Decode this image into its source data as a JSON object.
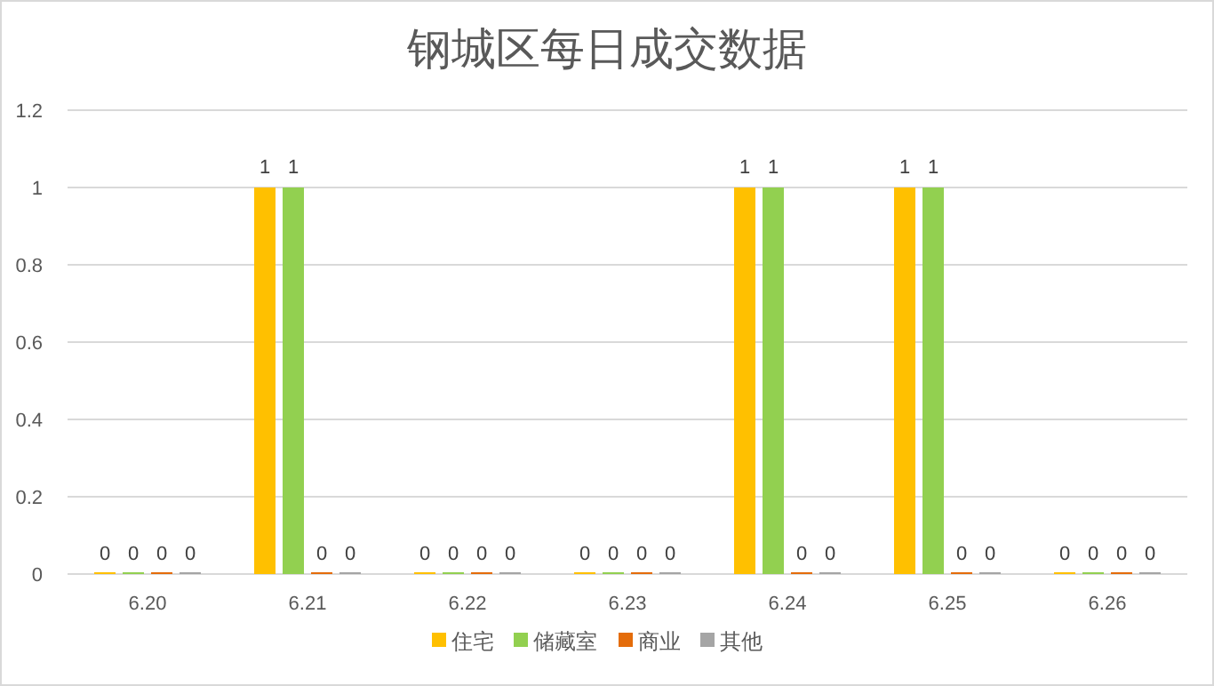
{
  "chart_data": {
    "type": "bar",
    "title": "钢城区每日成交数据",
    "categories": [
      "6.20",
      "6.21",
      "6.22",
      "6.23",
      "6.24",
      "6.25",
      "6.26"
    ],
    "series": [
      {
        "name": "住宅",
        "color": "#ffc000",
        "values": [
          0,
          1,
          0,
          0,
          1,
          1,
          0
        ]
      },
      {
        "name": "储藏室",
        "color": "#92d050",
        "values": [
          0,
          1,
          0,
          0,
          1,
          1,
          0
        ]
      },
      {
        "name": "商业",
        "color": "#e46c0a",
        "values": [
          0,
          0,
          0,
          0,
          0,
          0,
          0
        ]
      },
      {
        "name": "其他",
        "color": "#a5a5a5",
        "values": [
          0,
          0,
          0,
          0,
          0,
          0,
          0
        ]
      }
    ],
    "ylim": [
      0,
      1.2
    ],
    "yticks": [
      0,
      0.2,
      0.4,
      0.6,
      0.8,
      1,
      1.2
    ],
    "grid": "y",
    "legend": "bottom",
    "data_labels": true
  }
}
